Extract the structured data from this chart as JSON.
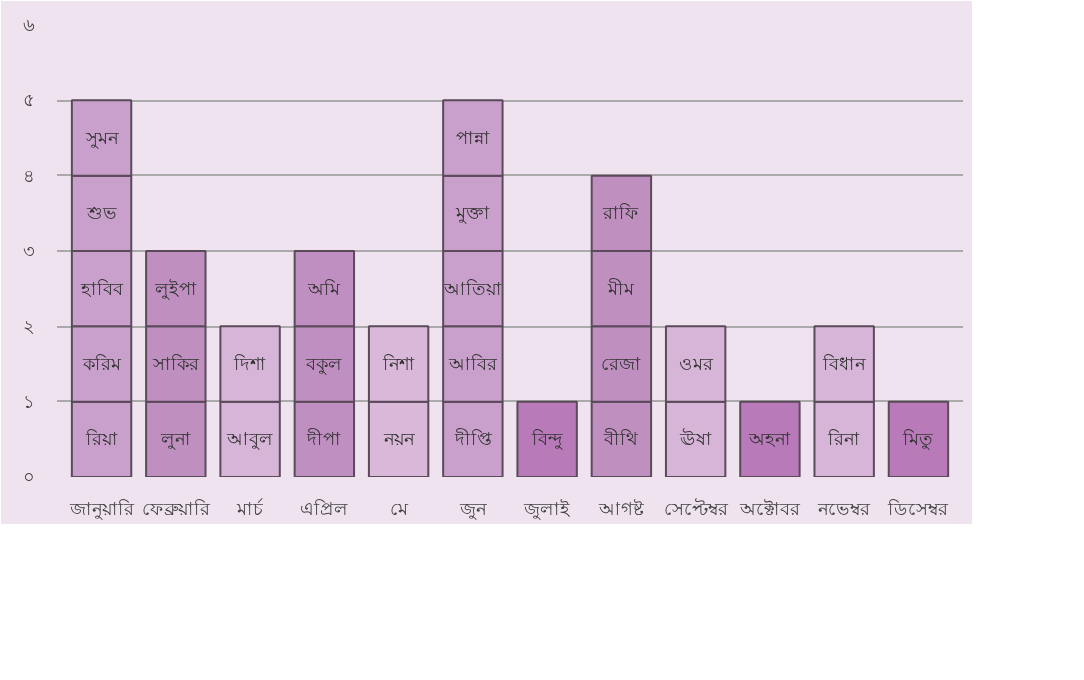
{
  "chart_data": {
    "type": "bar",
    "stacked": true,
    "categories": [
      "জানুয়ারি",
      "ফেব্রুয়ারি",
      "মার্চ",
      "এপ্রিল",
      "মে",
      "জুন",
      "জুলাই",
      "আগষ্ট",
      "সেপ্টেম্বর",
      "অক্টোবর",
      "নভেম্বর",
      "ডিসেম্বর"
    ],
    "series": [
      {
        "values": [
          1,
          1,
          1,
          1,
          1,
          1,
          1,
          1,
          1,
          1,
          1,
          1
        ],
        "colors": [
          "#c9a0cb",
          "#bf8fc0",
          "#d7b5d8",
          "#c08fc2",
          "#d9b8d9",
          "#c9a0cb",
          "#b87ab8",
          "#bf8fc0",
          "#d7b5d8",
          "#b87ab8",
          "#d7b5d8",
          "#b87ab8"
        ],
        "value_labels": [
          "রিয়া",
          "লুনা",
          "আবুল",
          "দীপা",
          "নয়ন",
          "দীপ্তি",
          "বিন্দু",
          "বীথি",
          "ঊষা",
          "অহনা",
          "রিনা",
          "মিতু"
        ]
      },
      {
        "values": [
          1,
          1,
          1,
          1,
          1,
          1,
          null,
          1,
          1,
          null,
          1,
          null
        ],
        "colors": [
          "#c9a0cb",
          "#bf8fc0",
          "#d7b5d8",
          "#c08fc2",
          "#d9b8d9",
          "#c9a0cb",
          "#b87ab8",
          "#bf8fc0",
          "#d7b5d8",
          "#b87ab8",
          "#d7b5d8",
          "#b87ab8"
        ],
        "value_labels": [
          "করিম",
          "সাকির",
          "দিশা",
          "বকুল",
          "নিশা",
          "আবির",
          null,
          "রেজা",
          "ওমর",
          null,
          "বিধান",
          null
        ]
      },
      {
        "values": [
          1,
          1,
          null,
          1,
          null,
          1,
          null,
          1,
          null,
          null,
          null,
          null
        ],
        "colors": [
          "#c9a0cb",
          "#bf8fc0",
          "#d7b5d8",
          "#c08fc2",
          "#d9b8d9",
          "#c9a0cb",
          "#b87ab8",
          "#bf8fc0",
          "#d7b5d8",
          "#b87ab8",
          "#d7b5d8",
          "#b87ab8"
        ],
        "value_labels": [
          "হাবিব",
          "লুইপা",
          null,
          "অমি",
          null,
          "আতিয়া",
          null,
          "মীম",
          null,
          null,
          null,
          null
        ]
      },
      {
        "values": [
          1,
          null,
          null,
          null,
          null,
          1,
          null,
          1,
          null,
          null,
          null,
          null
        ],
        "colors": [
          "#c9a0cb",
          "#bf8fc0",
          "#d7b5d8",
          "#c08fc2",
          "#d9b8d9",
          "#c9a0cb",
          "#b87ab8",
          "#bf8fc0",
          "#d7b5d8",
          "#b87ab8",
          "#d7b5d8",
          "#b87ab8"
        ],
        "value_labels": [
          "শুভ",
          null,
          null,
          null,
          null,
          "মুক্তা",
          null,
          "রাফি",
          null,
          null,
          null,
          null
        ]
      },
      {
        "values": [
          1,
          null,
          null,
          null,
          null,
          1,
          null,
          null,
          null,
          null,
          null,
          null
        ],
        "colors": [
          "#c9a0cb",
          "#bf8fc0",
          "#d7b5d8",
          "#c08fc2",
          "#d9b8d9",
          "#c9a0cb",
          "#b87ab8",
          "#bf8fc0",
          "#d7b5d8",
          "#b87ab8",
          "#d7b5d8",
          "#b87ab8"
        ],
        "value_labels": [
          "সুমন",
          null,
          null,
          null,
          null,
          "পান্না",
          null,
          null,
          null,
          null,
          null,
          null
        ]
      }
    ],
    "ylim": [
      0,
      6
    ],
    "yticks": [
      {
        "value": 0,
        "label": "০"
      },
      {
        "value": 1,
        "label": "১"
      },
      {
        "value": 2,
        "label": "২"
      },
      {
        "value": 3,
        "label": "৩"
      },
      {
        "value": 4,
        "label": "৪"
      },
      {
        "value": 5,
        "label": "৫"
      },
      {
        "value": 6,
        "label": "৬"
      }
    ],
    "grid": "y"
  }
}
